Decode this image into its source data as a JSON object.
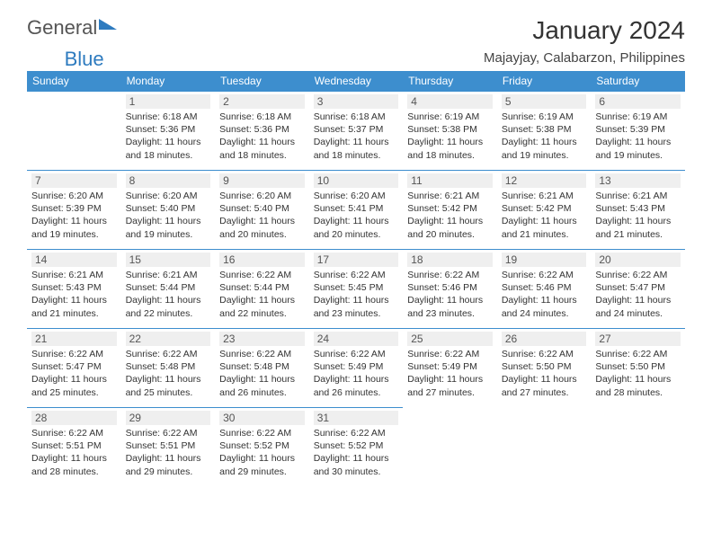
{
  "logo": {
    "part1": "General",
    "part2": "Blue"
  },
  "title": "January 2024",
  "location": "Majayjay, Calabarzon, Philippines",
  "colors": {
    "header_bg": "#3d8ece",
    "header_text": "#ffffff",
    "daynum_bg": "#efefef",
    "body_text": "#333333",
    "logo_blue": "#2e7bbf"
  },
  "fonts": {
    "title_size": 28,
    "location_size": 15,
    "th_size": 12,
    "daynum_size": 12,
    "body_size": 10.5
  },
  "weekdays": [
    "Sunday",
    "Monday",
    "Tuesday",
    "Wednesday",
    "Thursday",
    "Friday",
    "Saturday"
  ],
  "weeks": [
    [
      {
        "num": "",
        "text": ""
      },
      {
        "num": "1",
        "text": "Sunrise: 6:18 AM\nSunset: 5:36 PM\nDaylight: 11 hours and 18 minutes."
      },
      {
        "num": "2",
        "text": "Sunrise: 6:18 AM\nSunset: 5:36 PM\nDaylight: 11 hours and 18 minutes."
      },
      {
        "num": "3",
        "text": "Sunrise: 6:18 AM\nSunset: 5:37 PM\nDaylight: 11 hours and 18 minutes."
      },
      {
        "num": "4",
        "text": "Sunrise: 6:19 AM\nSunset: 5:38 PM\nDaylight: 11 hours and 18 minutes."
      },
      {
        "num": "5",
        "text": "Sunrise: 6:19 AM\nSunset: 5:38 PM\nDaylight: 11 hours and 19 minutes."
      },
      {
        "num": "6",
        "text": "Sunrise: 6:19 AM\nSunset: 5:39 PM\nDaylight: 11 hours and 19 minutes."
      }
    ],
    [
      {
        "num": "7",
        "text": "Sunrise: 6:20 AM\nSunset: 5:39 PM\nDaylight: 11 hours and 19 minutes."
      },
      {
        "num": "8",
        "text": "Sunrise: 6:20 AM\nSunset: 5:40 PM\nDaylight: 11 hours and 19 minutes."
      },
      {
        "num": "9",
        "text": "Sunrise: 6:20 AM\nSunset: 5:40 PM\nDaylight: 11 hours and 20 minutes."
      },
      {
        "num": "10",
        "text": "Sunrise: 6:20 AM\nSunset: 5:41 PM\nDaylight: 11 hours and 20 minutes."
      },
      {
        "num": "11",
        "text": "Sunrise: 6:21 AM\nSunset: 5:42 PM\nDaylight: 11 hours and 20 minutes."
      },
      {
        "num": "12",
        "text": "Sunrise: 6:21 AM\nSunset: 5:42 PM\nDaylight: 11 hours and 21 minutes."
      },
      {
        "num": "13",
        "text": "Sunrise: 6:21 AM\nSunset: 5:43 PM\nDaylight: 11 hours and 21 minutes."
      }
    ],
    [
      {
        "num": "14",
        "text": "Sunrise: 6:21 AM\nSunset: 5:43 PM\nDaylight: 11 hours and 21 minutes."
      },
      {
        "num": "15",
        "text": "Sunrise: 6:21 AM\nSunset: 5:44 PM\nDaylight: 11 hours and 22 minutes."
      },
      {
        "num": "16",
        "text": "Sunrise: 6:22 AM\nSunset: 5:44 PM\nDaylight: 11 hours and 22 minutes."
      },
      {
        "num": "17",
        "text": "Sunrise: 6:22 AM\nSunset: 5:45 PM\nDaylight: 11 hours and 23 minutes."
      },
      {
        "num": "18",
        "text": "Sunrise: 6:22 AM\nSunset: 5:46 PM\nDaylight: 11 hours and 23 minutes."
      },
      {
        "num": "19",
        "text": "Sunrise: 6:22 AM\nSunset: 5:46 PM\nDaylight: 11 hours and 24 minutes."
      },
      {
        "num": "20",
        "text": "Sunrise: 6:22 AM\nSunset: 5:47 PM\nDaylight: 11 hours and 24 minutes."
      }
    ],
    [
      {
        "num": "21",
        "text": "Sunrise: 6:22 AM\nSunset: 5:47 PM\nDaylight: 11 hours and 25 minutes."
      },
      {
        "num": "22",
        "text": "Sunrise: 6:22 AM\nSunset: 5:48 PM\nDaylight: 11 hours and 25 minutes."
      },
      {
        "num": "23",
        "text": "Sunrise: 6:22 AM\nSunset: 5:48 PM\nDaylight: 11 hours and 26 minutes."
      },
      {
        "num": "24",
        "text": "Sunrise: 6:22 AM\nSunset: 5:49 PM\nDaylight: 11 hours and 26 minutes."
      },
      {
        "num": "25",
        "text": "Sunrise: 6:22 AM\nSunset: 5:49 PM\nDaylight: 11 hours and 27 minutes."
      },
      {
        "num": "26",
        "text": "Sunrise: 6:22 AM\nSunset: 5:50 PM\nDaylight: 11 hours and 27 minutes."
      },
      {
        "num": "27",
        "text": "Sunrise: 6:22 AM\nSunset: 5:50 PM\nDaylight: 11 hours and 28 minutes."
      }
    ],
    [
      {
        "num": "28",
        "text": "Sunrise: 6:22 AM\nSunset: 5:51 PM\nDaylight: 11 hours and 28 minutes."
      },
      {
        "num": "29",
        "text": "Sunrise: 6:22 AM\nSunset: 5:51 PM\nDaylight: 11 hours and 29 minutes."
      },
      {
        "num": "30",
        "text": "Sunrise: 6:22 AM\nSunset: 5:52 PM\nDaylight: 11 hours and 29 minutes."
      },
      {
        "num": "31",
        "text": "Sunrise: 6:22 AM\nSunset: 5:52 PM\nDaylight: 11 hours and 30 minutes."
      },
      {
        "num": "",
        "text": ""
      },
      {
        "num": "",
        "text": ""
      },
      {
        "num": "",
        "text": ""
      }
    ]
  ]
}
